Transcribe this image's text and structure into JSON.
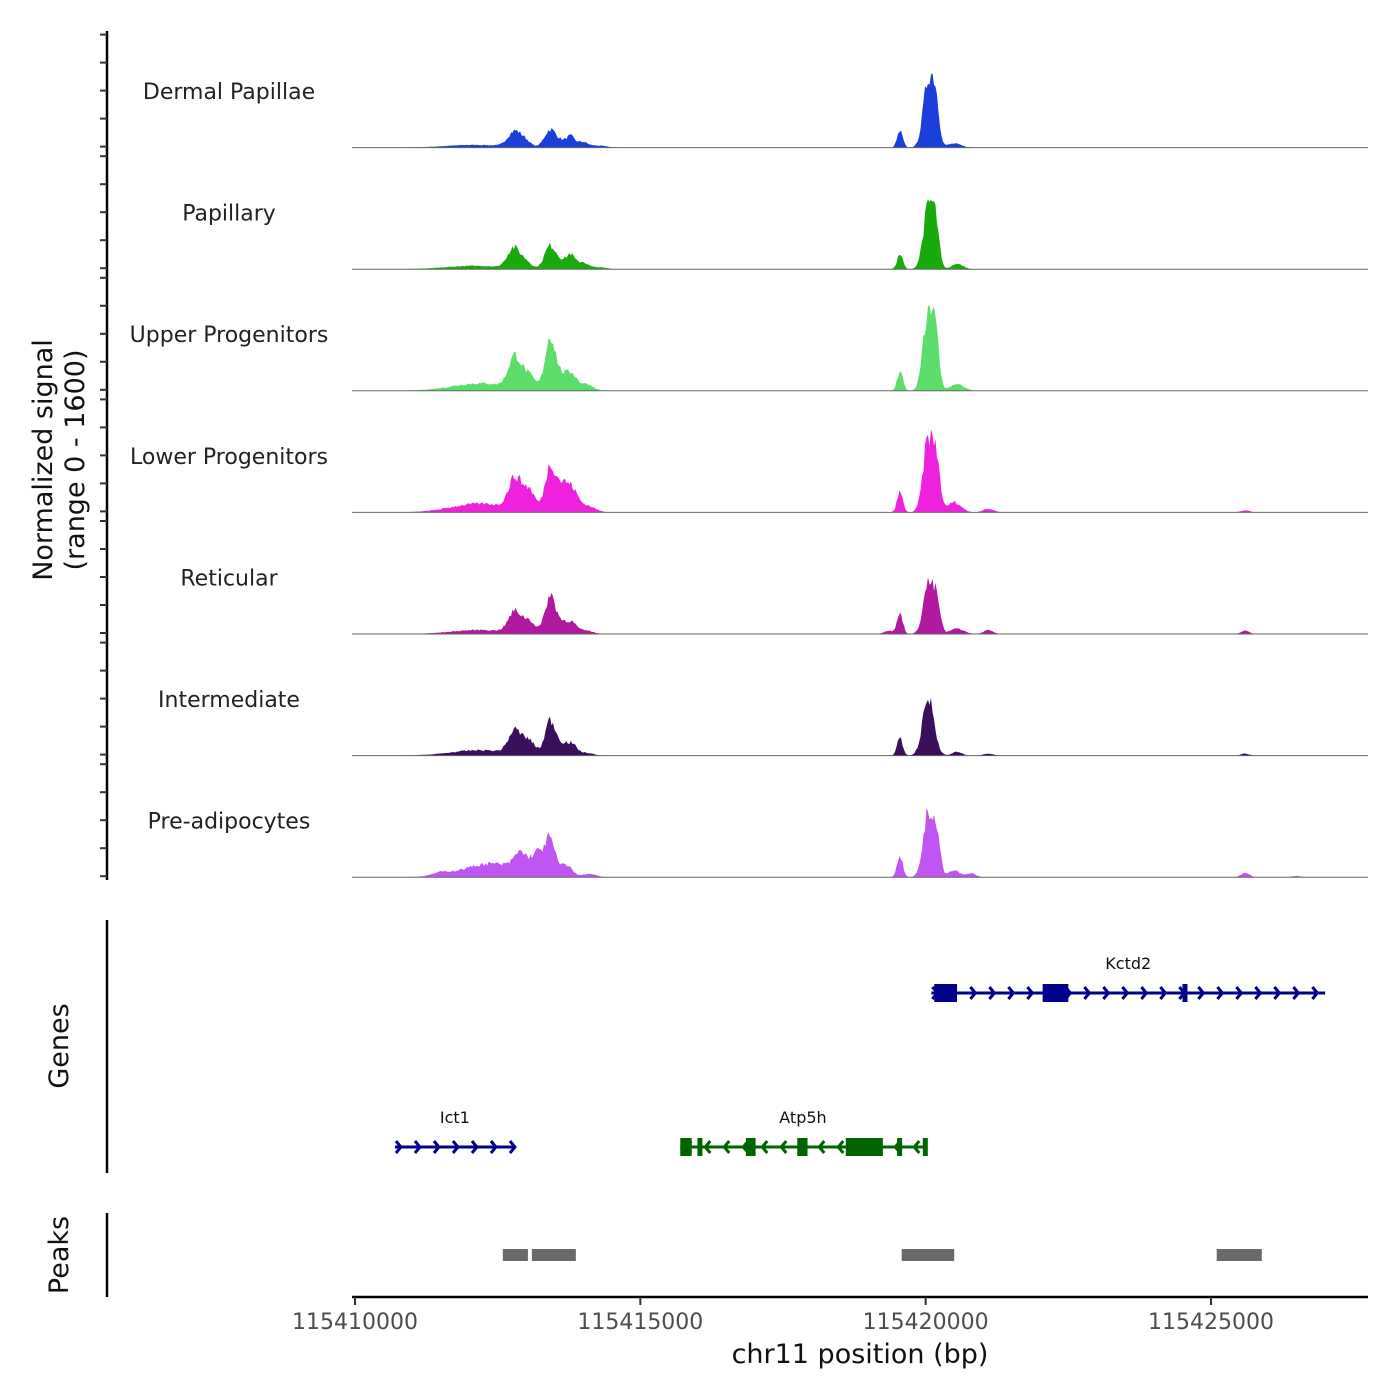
{
  "chart_data": {
    "type": "area",
    "title": "",
    "xlabel": "chr11 position (bp)",
    "ylabel": "Normalized signal\n(range 0 - 1600)",
    "y_range": [
      0,
      1600
    ],
    "xlim": [
      115410000,
      115427800
    ],
    "x_ticks": [
      115410000,
      115415000,
      115420000,
      115425000
    ],
    "x_tick_labels": [
      "115410000",
      "115415000",
      "115420000",
      "115425000"
    ],
    "grid": false,
    "tracks": [
      {
        "name": "Dermal Papillae",
        "color": "#1a3fdb",
        "peaks": [
          [
            115412100,
            0.04,
            500
          ],
          [
            115412800,
            0.23,
            120
          ],
          [
            115413000,
            0.07,
            90
          ],
          [
            115413420,
            0.26,
            100
          ],
          [
            115413620,
            0.08,
            90
          ],
          [
            115413780,
            0.15,
            70
          ],
          [
            115413980,
            0.08,
            90
          ],
          [
            115414250,
            0.03,
            150
          ],
          [
            115419550,
            0.24,
            50
          ],
          [
            115420050,
            1.0,
            90
          ],
          [
            115420180,
            0.55,
            60
          ],
          [
            115420500,
            0.06,
            120
          ]
        ]
      },
      {
        "name": "Papillary",
        "color": "#1aaa0e",
        "peaks": [
          [
            115412100,
            0.05,
            500
          ],
          [
            115412780,
            0.3,
            110
          ],
          [
            115413000,
            0.1,
            90
          ],
          [
            115413420,
            0.34,
            100
          ],
          [
            115413620,
            0.1,
            90
          ],
          [
            115413780,
            0.2,
            70
          ],
          [
            115413980,
            0.1,
            90
          ],
          [
            115414250,
            0.03,
            150
          ],
          [
            115419550,
            0.22,
            50
          ],
          [
            115420050,
            0.92,
            90
          ],
          [
            115420180,
            0.5,
            60
          ],
          [
            115420560,
            0.08,
            100
          ]
        ]
      },
      {
        "name": "Upper Progenitors",
        "color": "#5dde6a",
        "peaks": [
          [
            115412200,
            0.11,
            500
          ],
          [
            115412800,
            0.46,
            110
          ],
          [
            115413050,
            0.2,
            110
          ],
          [
            115413420,
            0.78,
            90
          ],
          [
            115413620,
            0.2,
            100
          ],
          [
            115413800,
            0.22,
            90
          ],
          [
            115414050,
            0.1,
            120
          ],
          [
            115419550,
            0.28,
            50
          ],
          [
            115420050,
            1.2,
            90
          ],
          [
            115420180,
            0.6,
            60
          ],
          [
            115420550,
            0.1,
            120
          ]
        ]
      },
      {
        "name": "Lower Progenitors",
        "color": "#ee22dd",
        "peaks": [
          [
            115412200,
            0.13,
            500
          ],
          [
            115412800,
            0.45,
            110
          ],
          [
            115413050,
            0.3,
            110
          ],
          [
            115413420,
            0.66,
            90
          ],
          [
            115413620,
            0.35,
            100
          ],
          [
            115413800,
            0.3,
            100
          ],
          [
            115414050,
            0.1,
            150
          ],
          [
            115419550,
            0.3,
            50
          ],
          [
            115420050,
            1.1,
            90
          ],
          [
            115420200,
            0.6,
            60
          ],
          [
            115420500,
            0.15,
            120
          ],
          [
            115421100,
            0.05,
            100
          ],
          [
            115425600,
            0.03,
            80
          ]
        ]
      },
      {
        "name": "Reticular",
        "color": "#b0189f",
        "peaks": [
          [
            115412200,
            0.06,
            500
          ],
          [
            115412800,
            0.3,
            110
          ],
          [
            115413050,
            0.18,
            110
          ],
          [
            115413420,
            0.55,
            90
          ],
          [
            115413620,
            0.15,
            100
          ],
          [
            115413800,
            0.15,
            90
          ],
          [
            115414050,
            0.05,
            120
          ],
          [
            115419350,
            0.05,
            80
          ],
          [
            115419550,
            0.3,
            50
          ],
          [
            115420050,
            0.75,
            90
          ],
          [
            115420200,
            0.4,
            60
          ],
          [
            115420550,
            0.08,
            120
          ],
          [
            115421100,
            0.06,
            80
          ],
          [
            115425600,
            0.05,
            70
          ]
        ]
      },
      {
        "name": "Intermediate",
        "color": "#3b0f5c",
        "peaks": [
          [
            115412200,
            0.08,
            500
          ],
          [
            115412800,
            0.33,
            110
          ],
          [
            115413050,
            0.2,
            110
          ],
          [
            115413420,
            0.5,
            90
          ],
          [
            115413620,
            0.15,
            100
          ],
          [
            115413800,
            0.15,
            90
          ],
          [
            115414050,
            0.04,
            120
          ],
          [
            115419550,
            0.25,
            50
          ],
          [
            115420050,
            0.84,
            100
          ],
          [
            115420550,
            0.06,
            80
          ],
          [
            115421100,
            0.03,
            80
          ],
          [
            115425600,
            0.03,
            70
          ]
        ]
      },
      {
        "name": "Pre-adipocytes",
        "color": "#c155f2",
        "peaks": [
          [
            115411500,
            0.04,
            150
          ],
          [
            115412400,
            0.2,
            500
          ],
          [
            115412900,
            0.25,
            110
          ],
          [
            115413200,
            0.3,
            110
          ],
          [
            115413420,
            0.51,
            90
          ],
          [
            115413700,
            0.18,
            100
          ],
          [
            115414100,
            0.05,
            120
          ],
          [
            115419550,
            0.3,
            50
          ],
          [
            115420050,
            0.96,
            90
          ],
          [
            115420200,
            0.5,
            60
          ],
          [
            115420500,
            0.1,
            100
          ],
          [
            115420800,
            0.06,
            80
          ],
          [
            115425600,
            0.07,
            70
          ],
          [
            115426500,
            0.02,
            70
          ]
        ]
      }
    ],
    "genes": [
      {
        "name": "Kctd2",
        "strand": "+",
        "color": "#00008b",
        "start": 115420100,
        "end": 115427000,
        "exons": [
          [
            115420150,
            115420550
          ],
          [
            115422050,
            115422500
          ],
          [
            115424500,
            115424580
          ]
        ]
      },
      {
        "name": "Ict1",
        "strand": "+",
        "color": "#00008b",
        "start": 115410700,
        "end": 115412800,
        "exons": []
      },
      {
        "name": "Atp5h",
        "strand": "-",
        "color": "#006400",
        "start": 115415700,
        "end": 115420000,
        "exons": [
          [
            115415700,
            115415900
          ],
          [
            115416000,
            115416080
          ],
          [
            115416850,
            115417020
          ],
          [
            115417750,
            115417930
          ],
          [
            115418600,
            115418850
          ],
          [
            115418850,
            115419250
          ],
          [
            115419500,
            115419580
          ],
          [
            115419950,
            115420000
          ]
        ]
      }
    ],
    "peaks_track": {
      "label": "Peaks",
      "color": "#696969",
      "regions": [
        [
          115412590,
          115413030
        ],
        [
          115413100,
          115413870
        ],
        [
          115419580,
          115420500
        ],
        [
          115425100,
          115425890
        ]
      ]
    },
    "genes_track_label": "Genes"
  }
}
